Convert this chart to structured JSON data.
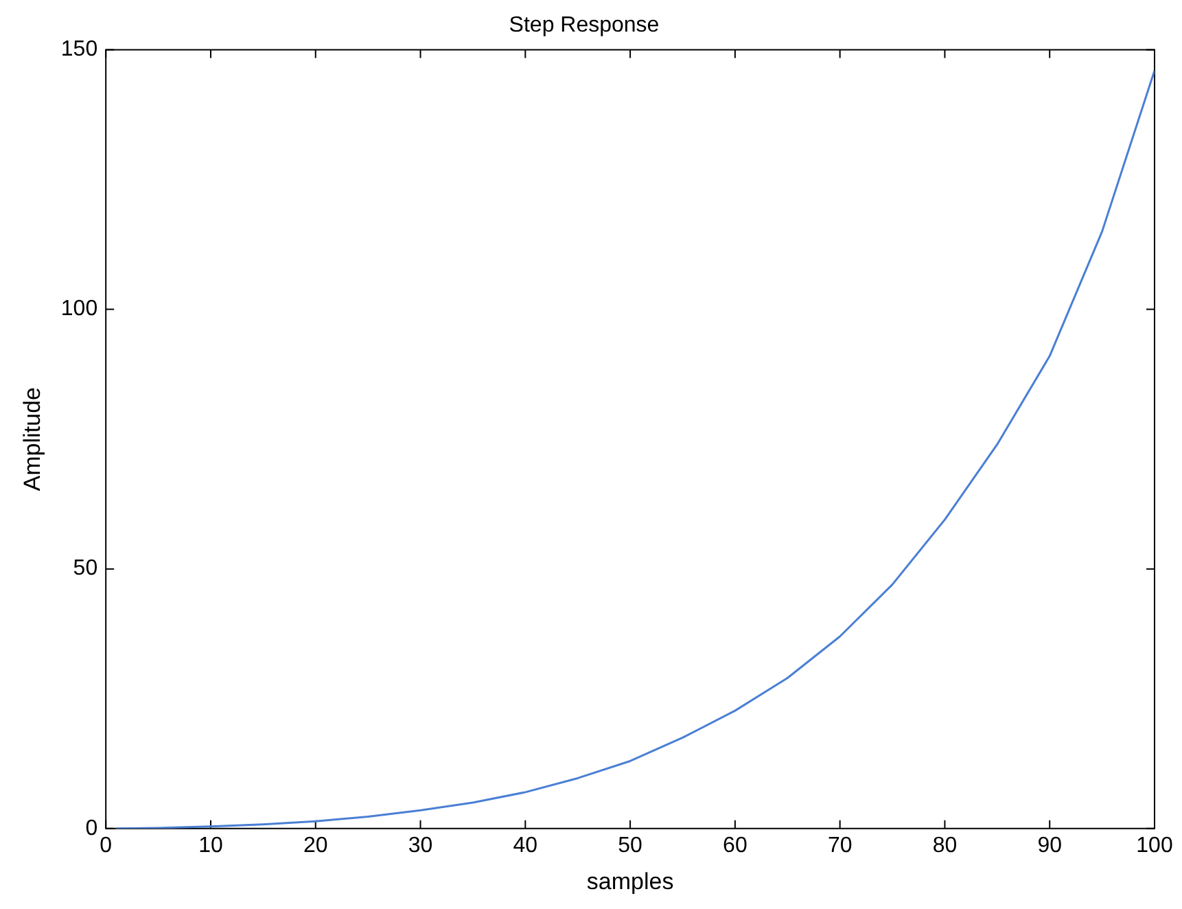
{
  "chart_data": {
    "type": "line",
    "title": "Step Response",
    "xlabel": "samples",
    "ylabel": "Amplitude",
    "x": [
      1,
      5,
      10,
      15,
      20,
      25,
      30,
      35,
      40,
      45,
      50,
      55,
      60,
      65,
      70,
      75,
      80,
      85,
      90,
      95,
      100
    ],
    "series": [
      {
        "color": "#4a7fd4",
        "values": [
          0,
          0.1,
          0.4,
          0.8,
          1.4,
          2.3,
          3.5,
          5,
          7,
          9.7,
          13,
          17.5,
          22.7,
          29,
          37,
          47,
          59.5,
          74,
          91,
          115,
          146
        ]
      }
    ],
    "xlim": [
      0,
      100
    ],
    "xticks": [
      0,
      10,
      20,
      30,
      40,
      50,
      60,
      70,
      80,
      90,
      100
    ],
    "ylim": [
      0,
      150
    ],
    "yticks": [
      0,
      50,
      100,
      150
    ],
    "grid": false,
    "legend": false,
    "marker": "none",
    "line_style": "solid"
  }
}
